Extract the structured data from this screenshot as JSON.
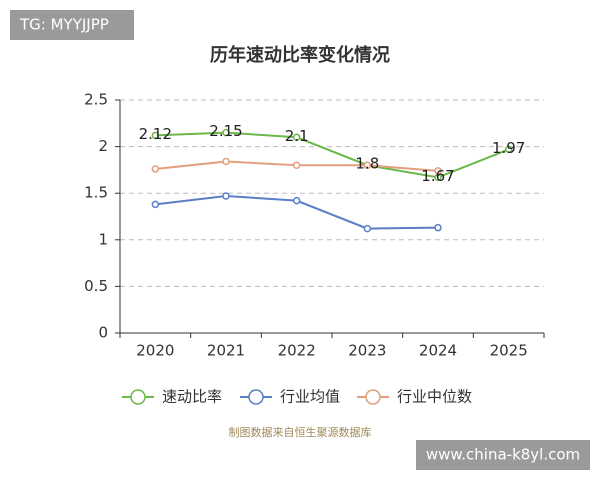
{
  "chart_data": {
    "type": "line",
    "title": "历年速动比率变化情况",
    "categories": [
      "2020",
      "2021",
      "2022",
      "2023",
      "2024",
      "2025"
    ],
    "series": [
      {
        "name": "速动比率",
        "color": "#6cb84a",
        "values": [
          2.12,
          2.15,
          2.1,
          1.8,
          1.67,
          1.97
        ],
        "show_labels": true
      },
      {
        "name": "行业均值",
        "color": "#5b7ec6",
        "values": [
          1.38,
          1.47,
          1.42,
          1.12,
          1.13,
          null
        ]
      },
      {
        "name": "行业中位数",
        "color": "#e39f7d",
        "values": [
          1.76,
          1.84,
          1.8,
          1.8,
          1.74,
          null
        ]
      }
    ],
    "ylim": [
      0,
      2.5
    ],
    "yticks": [
      0,
      0.5,
      1,
      1.5,
      2,
      2.5
    ],
    "grid": true,
    "source": "制图数据来自恒生聚源数据库"
  },
  "badge": "TG: MYYJJPP",
  "site": "www.china-k8yl.com"
}
